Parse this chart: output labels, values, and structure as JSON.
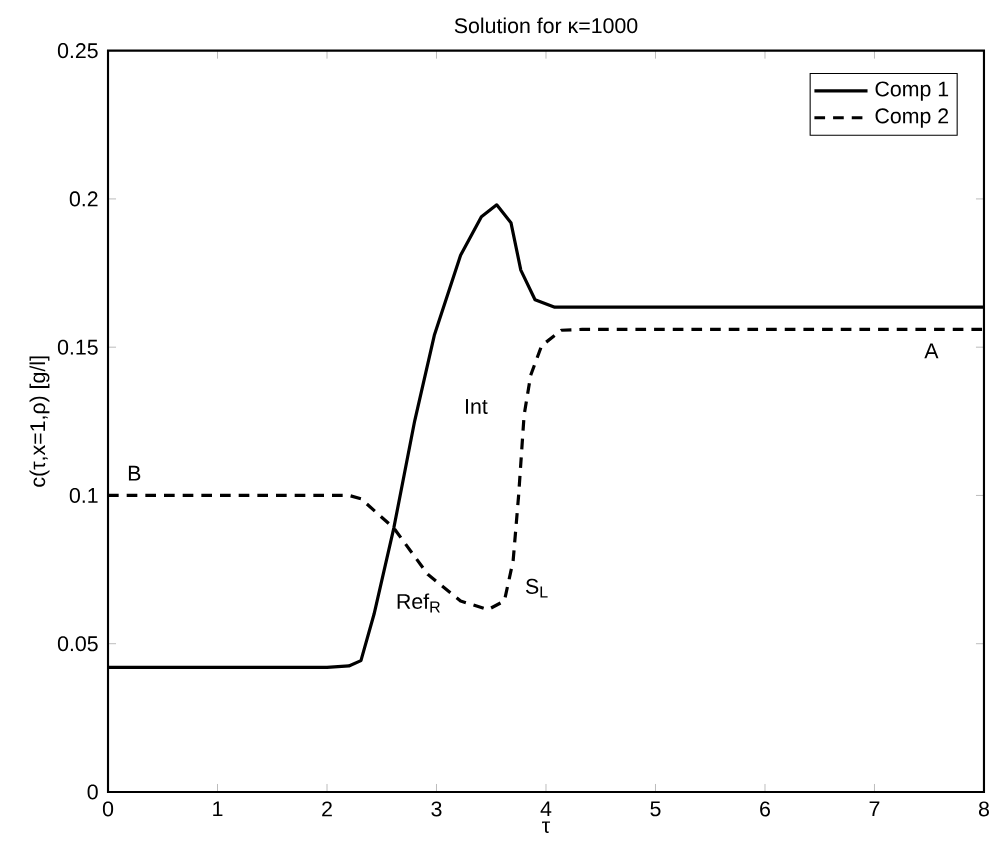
{
  "chart_data": {
    "type": "line",
    "title": "Solution for κ=1000",
    "xlabel": "τ",
    "ylabel": "c(τ,x=1,ρ) [g/l]",
    "xlim": [
      0,
      8
    ],
    "ylim": [
      0,
      0.25
    ],
    "xticks": [
      0,
      1,
      2,
      3,
      4,
      5,
      6,
      7,
      8
    ],
    "yticks": [
      0,
      0.05,
      0.1,
      0.15,
      0.2,
      0.25
    ],
    "grid": false,
    "legend": "top right",
    "series": [
      {
        "name": "Comp 1",
        "color": "#000000",
        "line_style": "solid",
        "x": [
          0,
          1,
          2,
          2.2,
          2.31,
          2.43,
          2.61,
          2.8,
          2.98,
          3.22,
          3.41,
          3.55,
          3.68,
          3.77,
          3.9,
          4.08,
          4.5,
          6,
          8
        ],
        "values": [
          0.042,
          0.042,
          0.042,
          0.0425,
          0.0443,
          0.06,
          0.089,
          0.125,
          0.154,
          0.181,
          0.194,
          0.198,
          0.192,
          0.176,
          0.166,
          0.1635,
          0.1635,
          0.1635,
          0.1635
        ]
      },
      {
        "name": "Comp 2",
        "color": "#000000",
        "line_style": "dashed",
        "x": [
          0,
          1,
          2,
          2.2,
          2.31,
          2.61,
          2.92,
          3.22,
          3.47,
          3.62,
          3.7,
          3.75,
          3.8,
          3.86,
          3.96,
          4.14,
          4.33,
          6,
          8
        ],
        "values": [
          0.1,
          0.1,
          0.1,
          0.1,
          0.0989,
          0.089,
          0.0734,
          0.0644,
          0.0615,
          0.0644,
          0.078,
          0.1,
          0.127,
          0.1405,
          0.1505,
          0.1557,
          0.156,
          0.156,
          0.156
        ]
      }
    ],
    "annotations": [
      "B",
      "A",
      "Int",
      "Ref$_{R}$",
      "S$_{L}$"
    ]
  }
}
